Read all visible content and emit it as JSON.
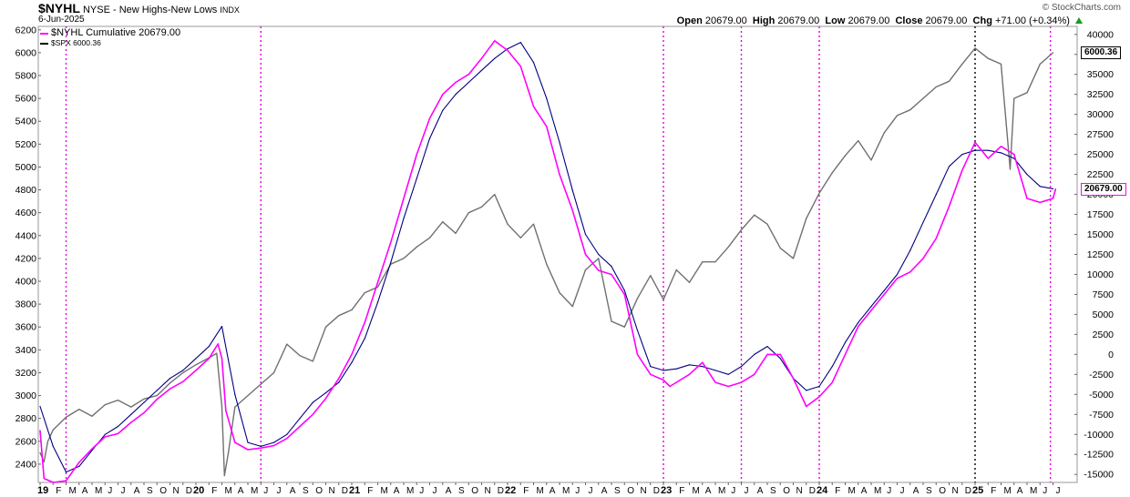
{
  "header": {
    "symbol": "$NYHL",
    "exchange_desc": "NYSE - New Highs-New Lows",
    "index_tag": "INDX",
    "date": "6-Jun-2025",
    "brand": "© StockCharts.com",
    "ohlc": {
      "open_label": "Open",
      "open": "20679.00",
      "high_label": "High",
      "high": "20679.00",
      "low_label": "Low",
      "low": "20679.00",
      "close_label": "Close",
      "close": "20679.00",
      "chg_label": "Chg",
      "chg": "+71.00 (+0.34%)"
    }
  },
  "legend": {
    "series1": "$NYHL Cumulative 20679.00",
    "series2": "$SPX 6000.36"
  },
  "tags": {
    "spx_last": "6000.36",
    "nyhl_last": "20679.00"
  },
  "colors": {
    "nyhl": "#ff00ff",
    "ma": "#000080",
    "spx": "#707070",
    "marker_magenta": "#e000e0",
    "marker_black": "#000000"
  },
  "chart_data": {
    "type": "line",
    "x_range": [
      "2019-01",
      "2025-07"
    ],
    "left_axis": {
      "label": "",
      "ticks": [
        2400,
        2600,
        2800,
        3000,
        3200,
        3400,
        3600,
        3800,
        4000,
        4200,
        4400,
        4600,
        4800,
        5000,
        5200,
        5400,
        5600,
        5800,
        6000,
        6200
      ],
      "range": [
        2240,
        6230
      ]
    },
    "right_axis": {
      "label": "",
      "ticks": [
        -15000,
        -12500,
        -10000,
        -7500,
        -5000,
        -2500,
        0,
        2500,
        5000,
        7500,
        10000,
        12500,
        15000,
        17500,
        20000,
        22500,
        25000,
        27500,
        30000,
        32500,
        35000,
        37500,
        40000
      ],
      "range": [
        -16000,
        41000
      ]
    },
    "x_tick_labels": [
      "19",
      "F",
      "M",
      "A",
      "M",
      "J",
      "J",
      "A",
      "S",
      "O",
      "N",
      "D",
      "20",
      "F",
      "M",
      "A",
      "M",
      "J",
      "J",
      "A",
      "S",
      "O",
      "N",
      "D",
      "21",
      "F",
      "M",
      "A",
      "M",
      "J",
      "J",
      "A",
      "S",
      "O",
      "N",
      "D",
      "22",
      "F",
      "M",
      "A",
      "M",
      "J",
      "J",
      "A",
      "S",
      "O",
      "N",
      "D",
      "23",
      "F",
      "M",
      "A",
      "M",
      "J",
      "J",
      "A",
      "S",
      "O",
      "N",
      "D",
      "24",
      "F",
      "M",
      "A",
      "M",
      "J",
      "J",
      "A",
      "S",
      "O",
      "N",
      "D",
      "25",
      "F",
      "M",
      "A",
      "M",
      "J",
      "J"
    ],
    "series": [
      {
        "name": "$NYHL Cumulative",
        "axis": "right",
        "points": [
          [
            0,
            -9500
          ],
          [
            0.3,
            -15500
          ],
          [
            1,
            -16000
          ],
          [
            2,
            -15800
          ],
          [
            3,
            -13500
          ],
          [
            4,
            -11800
          ],
          [
            5,
            -10300
          ],
          [
            6,
            -9900
          ],
          [
            7,
            -8500
          ],
          [
            8,
            -7300
          ],
          [
            9,
            -5600
          ],
          [
            10,
            -4300
          ],
          [
            11,
            -3400
          ],
          [
            12,
            -2000
          ],
          [
            13,
            -500
          ],
          [
            13.7,
            1300
          ],
          [
            14,
            -500
          ],
          [
            14.3,
            -7000
          ],
          [
            15,
            -11000
          ],
          [
            16,
            -11900
          ],
          [
            17,
            -11700
          ],
          [
            18,
            -11400
          ],
          [
            19,
            -10500
          ],
          [
            20,
            -9000
          ],
          [
            21,
            -7500
          ],
          [
            22,
            -5500
          ],
          [
            23,
            -3000
          ],
          [
            24,
            0
          ],
          [
            25,
            4000
          ],
          [
            26,
            9000
          ],
          [
            27,
            14000
          ],
          [
            28,
            19500
          ],
          [
            29,
            25000
          ],
          [
            30,
            29500
          ],
          [
            31,
            32500
          ],
          [
            32,
            34000
          ],
          [
            33,
            35000
          ],
          [
            34,
            37000
          ],
          [
            35,
            39200
          ],
          [
            36,
            38000
          ],
          [
            37,
            36000
          ],
          [
            38,
            31000
          ],
          [
            39,
            28500
          ],
          [
            40,
            22500
          ],
          [
            41,
            18000
          ],
          [
            42,
            12500
          ],
          [
            43,
            10500
          ],
          [
            44,
            10000
          ],
          [
            45,
            7500
          ],
          [
            46,
            0
          ],
          [
            47,
            -2500
          ],
          [
            48,
            -3200
          ],
          [
            48.5,
            -4000
          ],
          [
            50,
            -2500
          ],
          [
            51,
            -1000
          ],
          [
            52,
            -3500
          ],
          [
            53,
            -4000
          ],
          [
            54,
            -3500
          ],
          [
            55,
            -2500
          ],
          [
            56,
            0
          ],
          [
            57,
            0
          ],
          [
            58,
            -3000
          ],
          [
            59,
            -6500
          ],
          [
            60,
            -5300
          ],
          [
            61,
            -3500
          ],
          [
            62,
            0
          ],
          [
            63,
            3500
          ],
          [
            64,
            5500
          ],
          [
            65,
            7500
          ],
          [
            66,
            9500
          ],
          [
            67,
            10300
          ],
          [
            68,
            12000
          ],
          [
            69,
            14500
          ],
          [
            70,
            18500
          ],
          [
            71,
            23000
          ],
          [
            72,
            26500
          ],
          [
            73,
            24500
          ],
          [
            74,
            26000
          ],
          [
            75,
            25000
          ],
          [
            76,
            19500
          ],
          [
            77,
            19000
          ],
          [
            78,
            19500
          ],
          [
            78.2,
            20679
          ]
        ]
      },
      {
        "name": "Moving Average",
        "axis": "right",
        "points": [
          [
            0,
            -6500
          ],
          [
            1,
            -11500
          ],
          [
            2,
            -14700
          ],
          [
            3,
            -14000
          ],
          [
            4,
            -12000
          ],
          [
            5,
            -10000
          ],
          [
            6,
            -9000
          ],
          [
            7,
            -7500
          ],
          [
            8,
            -6000
          ],
          [
            9,
            -4500
          ],
          [
            10,
            -3000
          ],
          [
            11,
            -2000
          ],
          [
            12,
            -500
          ],
          [
            13,
            1000
          ],
          [
            14,
            3500
          ],
          [
            15,
            -5000
          ],
          [
            16,
            -11000
          ],
          [
            17,
            -11500
          ],
          [
            18,
            -11000
          ],
          [
            19,
            -10000
          ],
          [
            20,
            -8000
          ],
          [
            21,
            -6000
          ],
          [
            22,
            -4800
          ],
          [
            23,
            -3500
          ],
          [
            24,
            -1000
          ],
          [
            25,
            2000
          ],
          [
            26,
            6500
          ],
          [
            27,
            11500
          ],
          [
            28,
            17000
          ],
          [
            29,
            22000
          ],
          [
            30,
            27000
          ],
          [
            31,
            30500
          ],
          [
            32,
            32500
          ],
          [
            33,
            34000
          ],
          [
            34,
            35500
          ],
          [
            35,
            37000
          ],
          [
            36,
            38200
          ],
          [
            37,
            39000
          ],
          [
            38,
            36500
          ],
          [
            39,
            32000
          ],
          [
            40,
            26500
          ],
          [
            41,
            20500
          ],
          [
            42,
            15000
          ],
          [
            43,
            12500
          ],
          [
            44,
            11000
          ],
          [
            45,
            8000
          ],
          [
            46,
            3000
          ],
          [
            47,
            -1500
          ],
          [
            48,
            -2000
          ],
          [
            49,
            -1800
          ],
          [
            50,
            -1300
          ],
          [
            51,
            -1500
          ],
          [
            52,
            -2000
          ],
          [
            53,
            -2500
          ],
          [
            54,
            -1500
          ],
          [
            55,
            0
          ],
          [
            56,
            1000
          ],
          [
            57,
            -500
          ],
          [
            58,
            -3000
          ],
          [
            59,
            -4500
          ],
          [
            60,
            -4000
          ],
          [
            61,
            -1500
          ],
          [
            62,
            1500
          ],
          [
            63,
            4000
          ],
          [
            64,
            6000
          ],
          [
            65,
            8000
          ],
          [
            66,
            10000
          ],
          [
            67,
            13000
          ],
          [
            68,
            16500
          ],
          [
            69,
            20000
          ],
          [
            70,
            23500
          ],
          [
            71,
            25000
          ],
          [
            72,
            25500
          ],
          [
            73,
            25500
          ],
          [
            74,
            25200
          ],
          [
            75,
            24500
          ],
          [
            76,
            22500
          ],
          [
            77,
            21000
          ],
          [
            78,
            20700
          ]
        ]
      },
      {
        "name": "$SPX",
        "axis": "left",
        "points": [
          [
            0,
            2500
          ],
          [
            0.3,
            2420
          ],
          [
            0.6,
            2600
          ],
          [
            1,
            2700
          ],
          [
            2,
            2810
          ],
          [
            3,
            2880
          ],
          [
            4,
            2820
          ],
          [
            5,
            2920
          ],
          [
            6,
            2960
          ],
          [
            7,
            2900
          ],
          [
            8,
            2970
          ],
          [
            9,
            3000
          ],
          [
            10,
            3110
          ],
          [
            11,
            3200
          ],
          [
            12,
            3270
          ],
          [
            13,
            3330
          ],
          [
            13.6,
            3370
          ],
          [
            14,
            2900
          ],
          [
            14.2,
            2300
          ],
          [
            14.5,
            2500
          ],
          [
            15,
            2900
          ],
          [
            16,
            3000
          ],
          [
            17,
            3100
          ],
          [
            18,
            3200
          ],
          [
            19,
            3450
          ],
          [
            20,
            3350
          ],
          [
            21,
            3300
          ],
          [
            22,
            3600
          ],
          [
            23,
            3700
          ],
          [
            24,
            3750
          ],
          [
            25,
            3900
          ],
          [
            26,
            3950
          ],
          [
            27,
            4150
          ],
          [
            28,
            4200
          ],
          [
            29,
            4300
          ],
          [
            30,
            4380
          ],
          [
            31,
            4520
          ],
          [
            32,
            4420
          ],
          [
            33,
            4600
          ],
          [
            34,
            4650
          ],
          [
            35,
            4760
          ],
          [
            36,
            4500
          ],
          [
            37,
            4380
          ],
          [
            38,
            4500
          ],
          [
            39,
            4150
          ],
          [
            40,
            3900
          ],
          [
            41,
            3780
          ],
          [
            42,
            4100
          ],
          [
            43,
            4200
          ],
          [
            44,
            3650
          ],
          [
            45,
            3600
          ],
          [
            46,
            3850
          ],
          [
            47,
            4050
          ],
          [
            48,
            3840
          ],
          [
            49,
            4100
          ],
          [
            50,
            3990
          ],
          [
            51,
            4170
          ],
          [
            52,
            4170
          ],
          [
            53,
            4300
          ],
          [
            54,
            4450
          ],
          [
            55,
            4580
          ],
          [
            56,
            4500
          ],
          [
            57,
            4290
          ],
          [
            58,
            4200
          ],
          [
            59,
            4550
          ],
          [
            60,
            4770
          ],
          [
            61,
            4950
          ],
          [
            62,
            5100
          ],
          [
            63,
            5230
          ],
          [
            64,
            5060
          ],
          [
            65,
            5300
          ],
          [
            66,
            5450
          ],
          [
            67,
            5500
          ],
          [
            68,
            5600
          ],
          [
            69,
            5700
          ],
          [
            70,
            5750
          ],
          [
            71,
            5900
          ],
          [
            72,
            6040
          ],
          [
            73,
            5950
          ],
          [
            74,
            5900
          ],
          [
            74.7,
            4980
          ],
          [
            75,
            5600
          ],
          [
            76,
            5650
          ],
          [
            77,
            5900
          ],
          [
            78,
            6000
          ]
        ]
      }
    ],
    "vertical_markers": [
      {
        "month": 2,
        "style": "magenta"
      },
      {
        "month": 17,
        "style": "magenta"
      },
      {
        "month": 48,
        "style": "magenta"
      },
      {
        "month": 54,
        "style": "magenta"
      },
      {
        "month": 60,
        "style": "magenta"
      },
      {
        "month": 72,
        "style": "black"
      },
      {
        "month": 77.8,
        "style": "magenta"
      }
    ],
    "grid": false,
    "legend_position": "top-left"
  }
}
